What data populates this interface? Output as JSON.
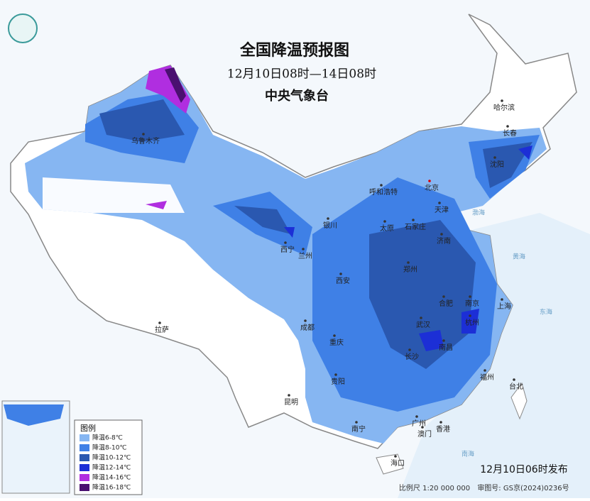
{
  "header": {
    "title": "全国降温预报图",
    "subtitle": "12月10日08时—14日08时",
    "issuer": "中央气象台"
  },
  "legend": {
    "title": "图例",
    "items": [
      {
        "label": "降温6-8℃",
        "color": "#86b6f2"
      },
      {
        "label": "降温8-10℃",
        "color": "#3f80e6"
      },
      {
        "label": "降温10-12℃",
        "color": "#2a58b0"
      },
      {
        "label": "降温12-14℃",
        "color": "#1c2fd6"
      },
      {
        "label": "降温14-16℃",
        "color": "#b02ee0"
      },
      {
        "label": "降温16-18℃",
        "color": "#4a1070"
      }
    ]
  },
  "cities": [
    "哈尔滨",
    "长春",
    "沈阳",
    "北京",
    "天津",
    "呼和浩特",
    "乌鲁木齐",
    "银川",
    "太原",
    "石家庄",
    "济南",
    "西宁",
    "兰州",
    "西安",
    "郑州",
    "合肥",
    "南京",
    "上海",
    "杭州",
    "武汉",
    "长沙",
    "南昌",
    "成都",
    "重庆",
    "贵阳",
    "拉萨",
    "昆明",
    "南宁",
    "广州",
    "澳门",
    "香港",
    "福州",
    "台北",
    "海口"
  ],
  "seas": [
    "渤海",
    "黄海",
    "东海",
    "南海"
  ],
  "footer": {
    "issued": "12月10日06时发布",
    "scale": "比例尺 1:20 000 000",
    "review": "审图号: GS京(2024)0236号"
  }
}
